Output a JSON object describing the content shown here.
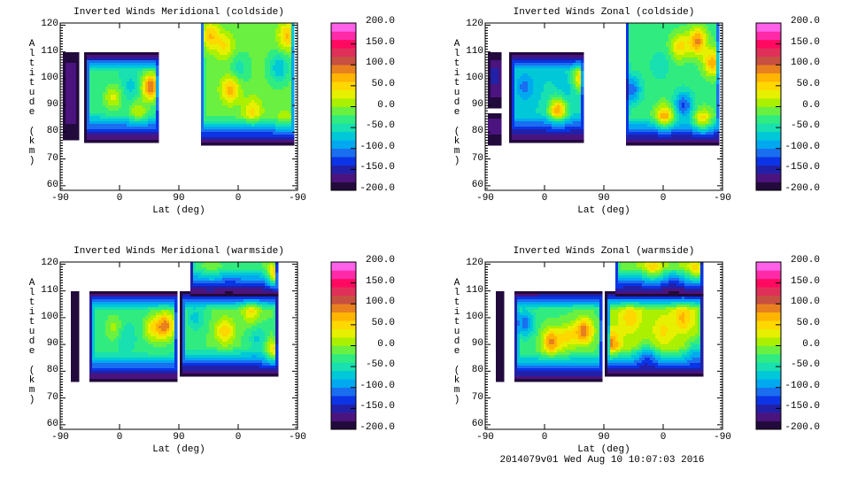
{
  "footer": "2014079v01 Wed Aug 10 10:07:03 2016",
  "colorbar": {
    "labels": [
      "200.0",
      "150.0",
      "100.0",
      "50.0",
      "0.0",
      "-50.0",
      "-100.0",
      "-150.0",
      "-200.0"
    ],
    "range": [
      -200,
      200
    ],
    "levels": 20,
    "colors": [
      "#220a3c",
      "#4a137e",
      "#2220a8",
      "#0a34e6",
      "#1a6ef0",
      "#00a8f0",
      "#00c8d8",
      "#18e0b0",
      "#30ec80",
      "#6af040",
      "#aaf000",
      "#e6f000",
      "#ffd800",
      "#ffb400",
      "#e88020",
      "#c85040",
      "#e0305a",
      "#ff0a60",
      "#ff2aa8",
      "#ff60e8"
    ]
  },
  "chart_data": [
    {
      "type": "heatmap",
      "title": "Inverted Winds Meridional (coldside)",
      "xlabel": "Lat (deg)",
      "ylabel": "Altitude (km)",
      "x_range": [
        0,
        360
      ],
      "xticks": [
        0,
        90,
        180,
        270,
        360
      ],
      "xtick_labels": [
        "-90",
        "0",
        "90",
        "0",
        "-90"
      ],
      "ylim": [
        58.3,
        120.8
      ],
      "yticks": [
        60,
        70,
        80,
        90,
        100,
        110,
        120
      ],
      "ytick_labels": [
        "60",
        "70",
        "80",
        "90",
        "100",
        "110",
        "120"
      ],
      "regions": [
        {
          "x": [
            3,
            28
          ],
          "alt": [
            77,
            110
          ],
          "base": -165,
          "blobs": []
        },
        {
          "x": [
            38,
            150
          ],
          "alt": [
            76,
            110
          ],
          "base": -40,
          "blobs": [
            {
              "x": 137,
              "alt": 97,
              "v": 95
            },
            {
              "x": 108,
              "alt": 97,
              "v": -70
            },
            {
              "x": 80,
              "alt": 93,
              "v": 25
            },
            {
              "x": 118,
              "alt": 87,
              "v": 20
            }
          ]
        },
        {
          "x": [
            212,
            356
          ],
          "alt": [
            75,
            121
          ],
          "base": -15,
          "blobs": [
            {
              "x": 228,
              "alt": 116,
              "v": 60
            },
            {
              "x": 250,
              "alt": 112,
              "v": 40
            },
            {
              "x": 258,
              "alt": 96,
              "v": 70
            },
            {
              "x": 272,
              "alt": 104,
              "v": -50
            },
            {
              "x": 292,
              "alt": 88,
              "v": 45
            },
            {
              "x": 332,
              "alt": 104,
              "v": -80
            },
            {
              "x": 345,
              "alt": 116,
              "v": 65
            },
            {
              "x": 340,
              "alt": 83,
              "v": 30
            }
          ]
        }
      ]
    },
    {
      "type": "heatmap",
      "title": "Inverted Winds Zonal (coldside)",
      "xlabel": "Lat (deg)",
      "ylabel": "Altitude (km)",
      "x_range": [
        0,
        360
      ],
      "xticks": [
        0,
        90,
        180,
        270,
        360
      ],
      "xtick_labels": [
        "-90",
        "0",
        "90",
        "0",
        "-90"
      ],
      "ylim": [
        58.3,
        120.8
      ],
      "yticks": [
        60,
        70,
        80,
        90,
        100,
        110,
        120
      ],
      "ytick_labels": [
        "60",
        "70",
        "80",
        "90",
        "100",
        "110",
        "120"
      ],
      "regions": [
        {
          "x": [
            3,
            26
          ],
          "alt": [
            89,
            110
          ],
          "base": -150,
          "blobs": []
        },
        {
          "x": [
            3,
            26
          ],
          "alt": [
            75,
            87
          ],
          "base": -140,
          "blobs": []
        },
        {
          "x": [
            38,
            150
          ],
          "alt": [
            76,
            110
          ],
          "base": -60,
          "blobs": [
            {
              "x": 110,
              "alt": 88,
              "v": 75
            },
            {
              "x": 124,
              "alt": 97,
              "v": -80
            },
            {
              "x": 145,
              "alt": 100,
              "v": 45
            },
            {
              "x": 60,
              "alt": 97,
              "v": -110
            }
          ]
        },
        {
          "x": [
            212,
            356
          ],
          "alt": [
            75,
            121
          ],
          "base": -30,
          "blobs": [
            {
              "x": 222,
              "alt": 96,
              "v": -115
            },
            {
              "x": 301,
              "alt": 90,
              "v": -125
            },
            {
              "x": 272,
              "alt": 85,
              "v": 85
            },
            {
              "x": 330,
              "alt": 83,
              "v": 80
            },
            {
              "x": 322,
              "alt": 114,
              "v": 85
            },
            {
              "x": 345,
              "alt": 106,
              "v": 70
            },
            {
              "x": 295,
              "alt": 112,
              "v": 45
            },
            {
              "x": 265,
              "alt": 105,
              "v": -60
            }
          ]
        }
      ]
    },
    {
      "type": "heatmap",
      "title": "Inverted Winds Meridional (warmside)",
      "xlabel": "Lat (deg)",
      "ylabel": "Altitude (km)",
      "x_range": [
        0,
        360
      ],
      "xticks": [
        0,
        90,
        180,
        270,
        360
      ],
      "xtick_labels": [
        "-90",
        "0",
        "90",
        "0",
        "-90"
      ],
      "ylim": [
        58.3,
        120.8
      ],
      "yticks": [
        60,
        70,
        80,
        90,
        100,
        110,
        120
      ],
      "ytick_labels": [
        "60",
        "70",
        "80",
        "90",
        "100",
        "110",
        "120"
      ],
      "regions": [
        {
          "x": [
            18,
            30
          ],
          "alt": [
            76,
            110
          ],
          "base": -175,
          "blobs": []
        },
        {
          "x": [
            44,
            178
          ],
          "alt": [
            76,
            110
          ],
          "base": -35,
          "blobs": [
            {
              "x": 160,
              "alt": 97,
              "v": 85
            },
            {
              "x": 140,
              "alt": 96,
              "v": 35
            },
            {
              "x": 98,
              "alt": 93,
              "v": -65
            },
            {
              "x": 82,
              "alt": 96,
              "v": 10
            }
          ]
        },
        {
          "x": [
            183,
            330
          ],
          "alt": [
            78,
            110
          ],
          "base": -20,
          "blobs": [
            {
              "x": 250,
              "alt": 95,
              "v": 55
            },
            {
              "x": 290,
              "alt": 103,
              "v": 45
            },
            {
              "x": 300,
              "alt": 92,
              "v": -65
            },
            {
              "x": 325,
              "alt": 86,
              "v": 85
            },
            {
              "x": 205,
              "alt": 100,
              "v": -70
            }
          ]
        },
        {
          "x": [
            197,
            330
          ],
          "alt": [
            108,
            121
          ],
          "base": -25,
          "blobs": [
            {
              "x": 328,
              "alt": 114,
              "v": 170
            },
            {
              "x": 255,
              "alt": 111,
              "v": -50
            },
            {
              "x": 230,
              "alt": 115,
              "v": 10
            }
          ]
        }
      ]
    },
    {
      "type": "heatmap",
      "title": "Inverted Winds Zonal (warmside)",
      "xlabel": "Lat (deg)",
      "ylabel": "Altitude (km)",
      "x_range": [
        0,
        360
      ],
      "xticks": [
        0,
        90,
        180,
        270,
        360
      ],
      "xtick_labels": [
        "-90",
        "0",
        "90",
        "0",
        "-90"
      ],
      "ylim": [
        58.3,
        120.8
      ],
      "yticks": [
        60,
        70,
        80,
        90,
        100,
        110,
        120
      ],
      "ytick_labels": [
        "60",
        "70",
        "80",
        "90",
        "100",
        "110",
        "120"
      ],
      "regions": [
        {
          "x": [
            18,
            30
          ],
          "alt": [
            76,
            110
          ],
          "base": -175,
          "blobs": []
        },
        {
          "x": [
            44,
            178
          ],
          "alt": [
            76,
            110
          ],
          "base": -25,
          "blobs": [
            {
              "x": 100,
              "alt": 91,
              "v": 85
            },
            {
              "x": 150,
              "alt": 95,
              "v": 95
            },
            {
              "x": 125,
              "alt": 93,
              "v": 40
            },
            {
              "x": 60,
              "alt": 98,
              "v": -110
            }
          ]
        },
        {
          "x": [
            183,
            330
          ],
          "alt": [
            78,
            110
          ],
          "base": 10,
          "blobs": [
            {
              "x": 245,
              "alt": 85,
              "v": -75
            },
            {
              "x": 300,
              "alt": 100,
              "v": 65
            },
            {
              "x": 220,
              "alt": 100,
              "v": 55
            },
            {
              "x": 190,
              "alt": 90,
              "v": 90
            },
            {
              "x": 320,
              "alt": 87,
              "v": -60
            },
            {
              "x": 270,
              "alt": 95,
              "v": 45
            }
          ]
        },
        {
          "x": [
            197,
            330
          ],
          "alt": [
            108,
            121
          ],
          "base": 0,
          "blobs": [
            {
              "x": 285,
              "alt": 111,
              "v": -65
            },
            {
              "x": 320,
              "alt": 116,
              "v": 75
            },
            {
              "x": 255,
              "alt": 117,
              "v": 65
            },
            {
              "x": 225,
              "alt": 113,
              "v": -20
            }
          ]
        }
      ]
    }
  ]
}
